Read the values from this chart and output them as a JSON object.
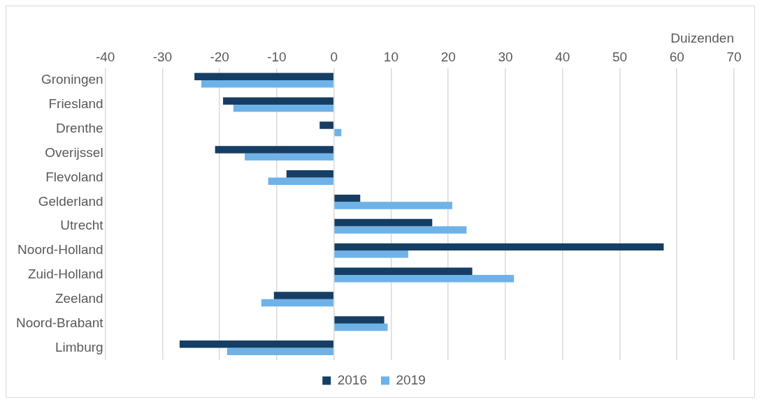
{
  "chart_data": {
    "type": "bar",
    "orientation": "horizontal",
    "xlabel": "Duizenden",
    "categories": [
      "Groningen",
      "Friesland",
      "Drenthe",
      "Overijssel",
      "Flevoland",
      "Gelderland",
      "Utrecht",
      "Noord-Holland",
      "Zuid-Holland",
      "Zeeland",
      "Noord-Brabant",
      "Limburg"
    ],
    "series": [
      {
        "name": "2016",
        "color": "#163e64",
        "values": [
          -24.4,
          -19.4,
          -2.5,
          -20.8,
          -8.3,
          4.6,
          17.2,
          57.7,
          24.2,
          -10.5,
          8.8,
          -27.0
        ]
      },
      {
        "name": "2019",
        "color": "#6fb2e8",
        "values": [
          -23.2,
          -17.6,
          1.3,
          -15.6,
          -11.5,
          20.7,
          23.2,
          13.0,
          31.5,
          -12.7,
          9.4,
          -18.7
        ]
      }
    ],
    "xlim": [
      -40,
      70
    ],
    "xticks": [
      -40,
      -30,
      -20,
      -10,
      0,
      10,
      20,
      30,
      40,
      50,
      60,
      70
    ],
    "grid": "x",
    "legend": "bottom"
  }
}
